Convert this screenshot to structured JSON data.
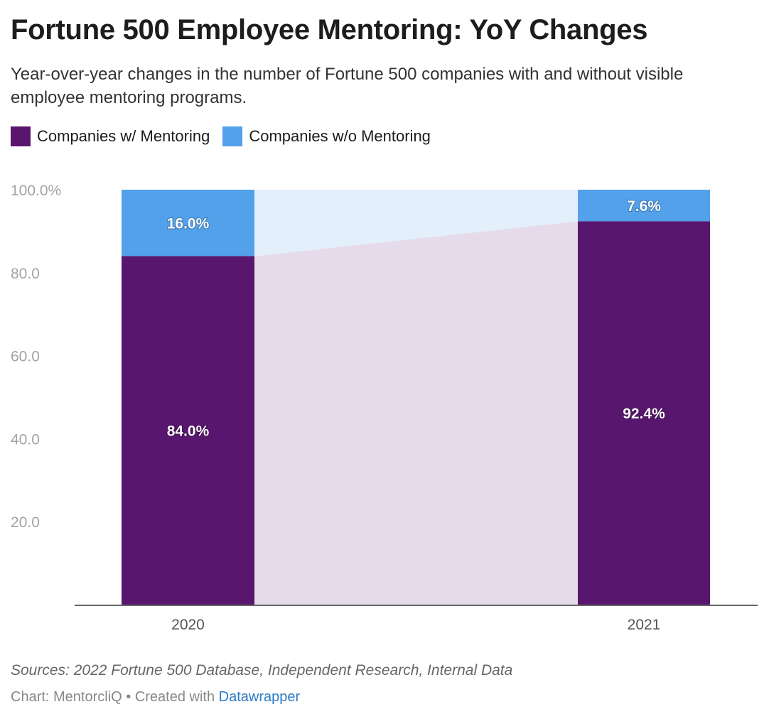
{
  "title": "Fortune 500 Employee Mentoring: YoY Changes",
  "subtitle": "Year-over-year changes in the number of Fortune 500 companies with and without visible employee mentoring programs.",
  "sources": "Sources: 2022 Fortune 500 Database, Independent Research, Internal Data",
  "credit": {
    "prefix": "Chart: MentorcliQ • Created with ",
    "link": "Datawrapper"
  },
  "chart_data": {
    "type": "bar",
    "stacked": true,
    "categories": [
      "2020",
      "2021"
    ],
    "series": [
      {
        "name": "Companies w/ Mentoring",
        "values": [
          84.0,
          92.4
        ],
        "labels": [
          "84.0%",
          "92.4%"
        ],
        "color": "#58166e"
      },
      {
        "name": "Companies w/o Mentoring",
        "values": [
          16.0,
          7.6
        ],
        "labels": [
          "16.0%",
          "7.6%"
        ],
        "color": "#52a1ea"
      }
    ],
    "ylim": [
      0,
      100
    ],
    "yticks": [
      20,
      40,
      60,
      80,
      100
    ],
    "ytick_labels": [
      "20.0",
      "40.0",
      "60.0",
      "80.0",
      "100.0%"
    ],
    "connector_colors": [
      "#e5dbea",
      "#e3f0fc"
    ],
    "grid": false,
    "legend": "top-left"
  }
}
